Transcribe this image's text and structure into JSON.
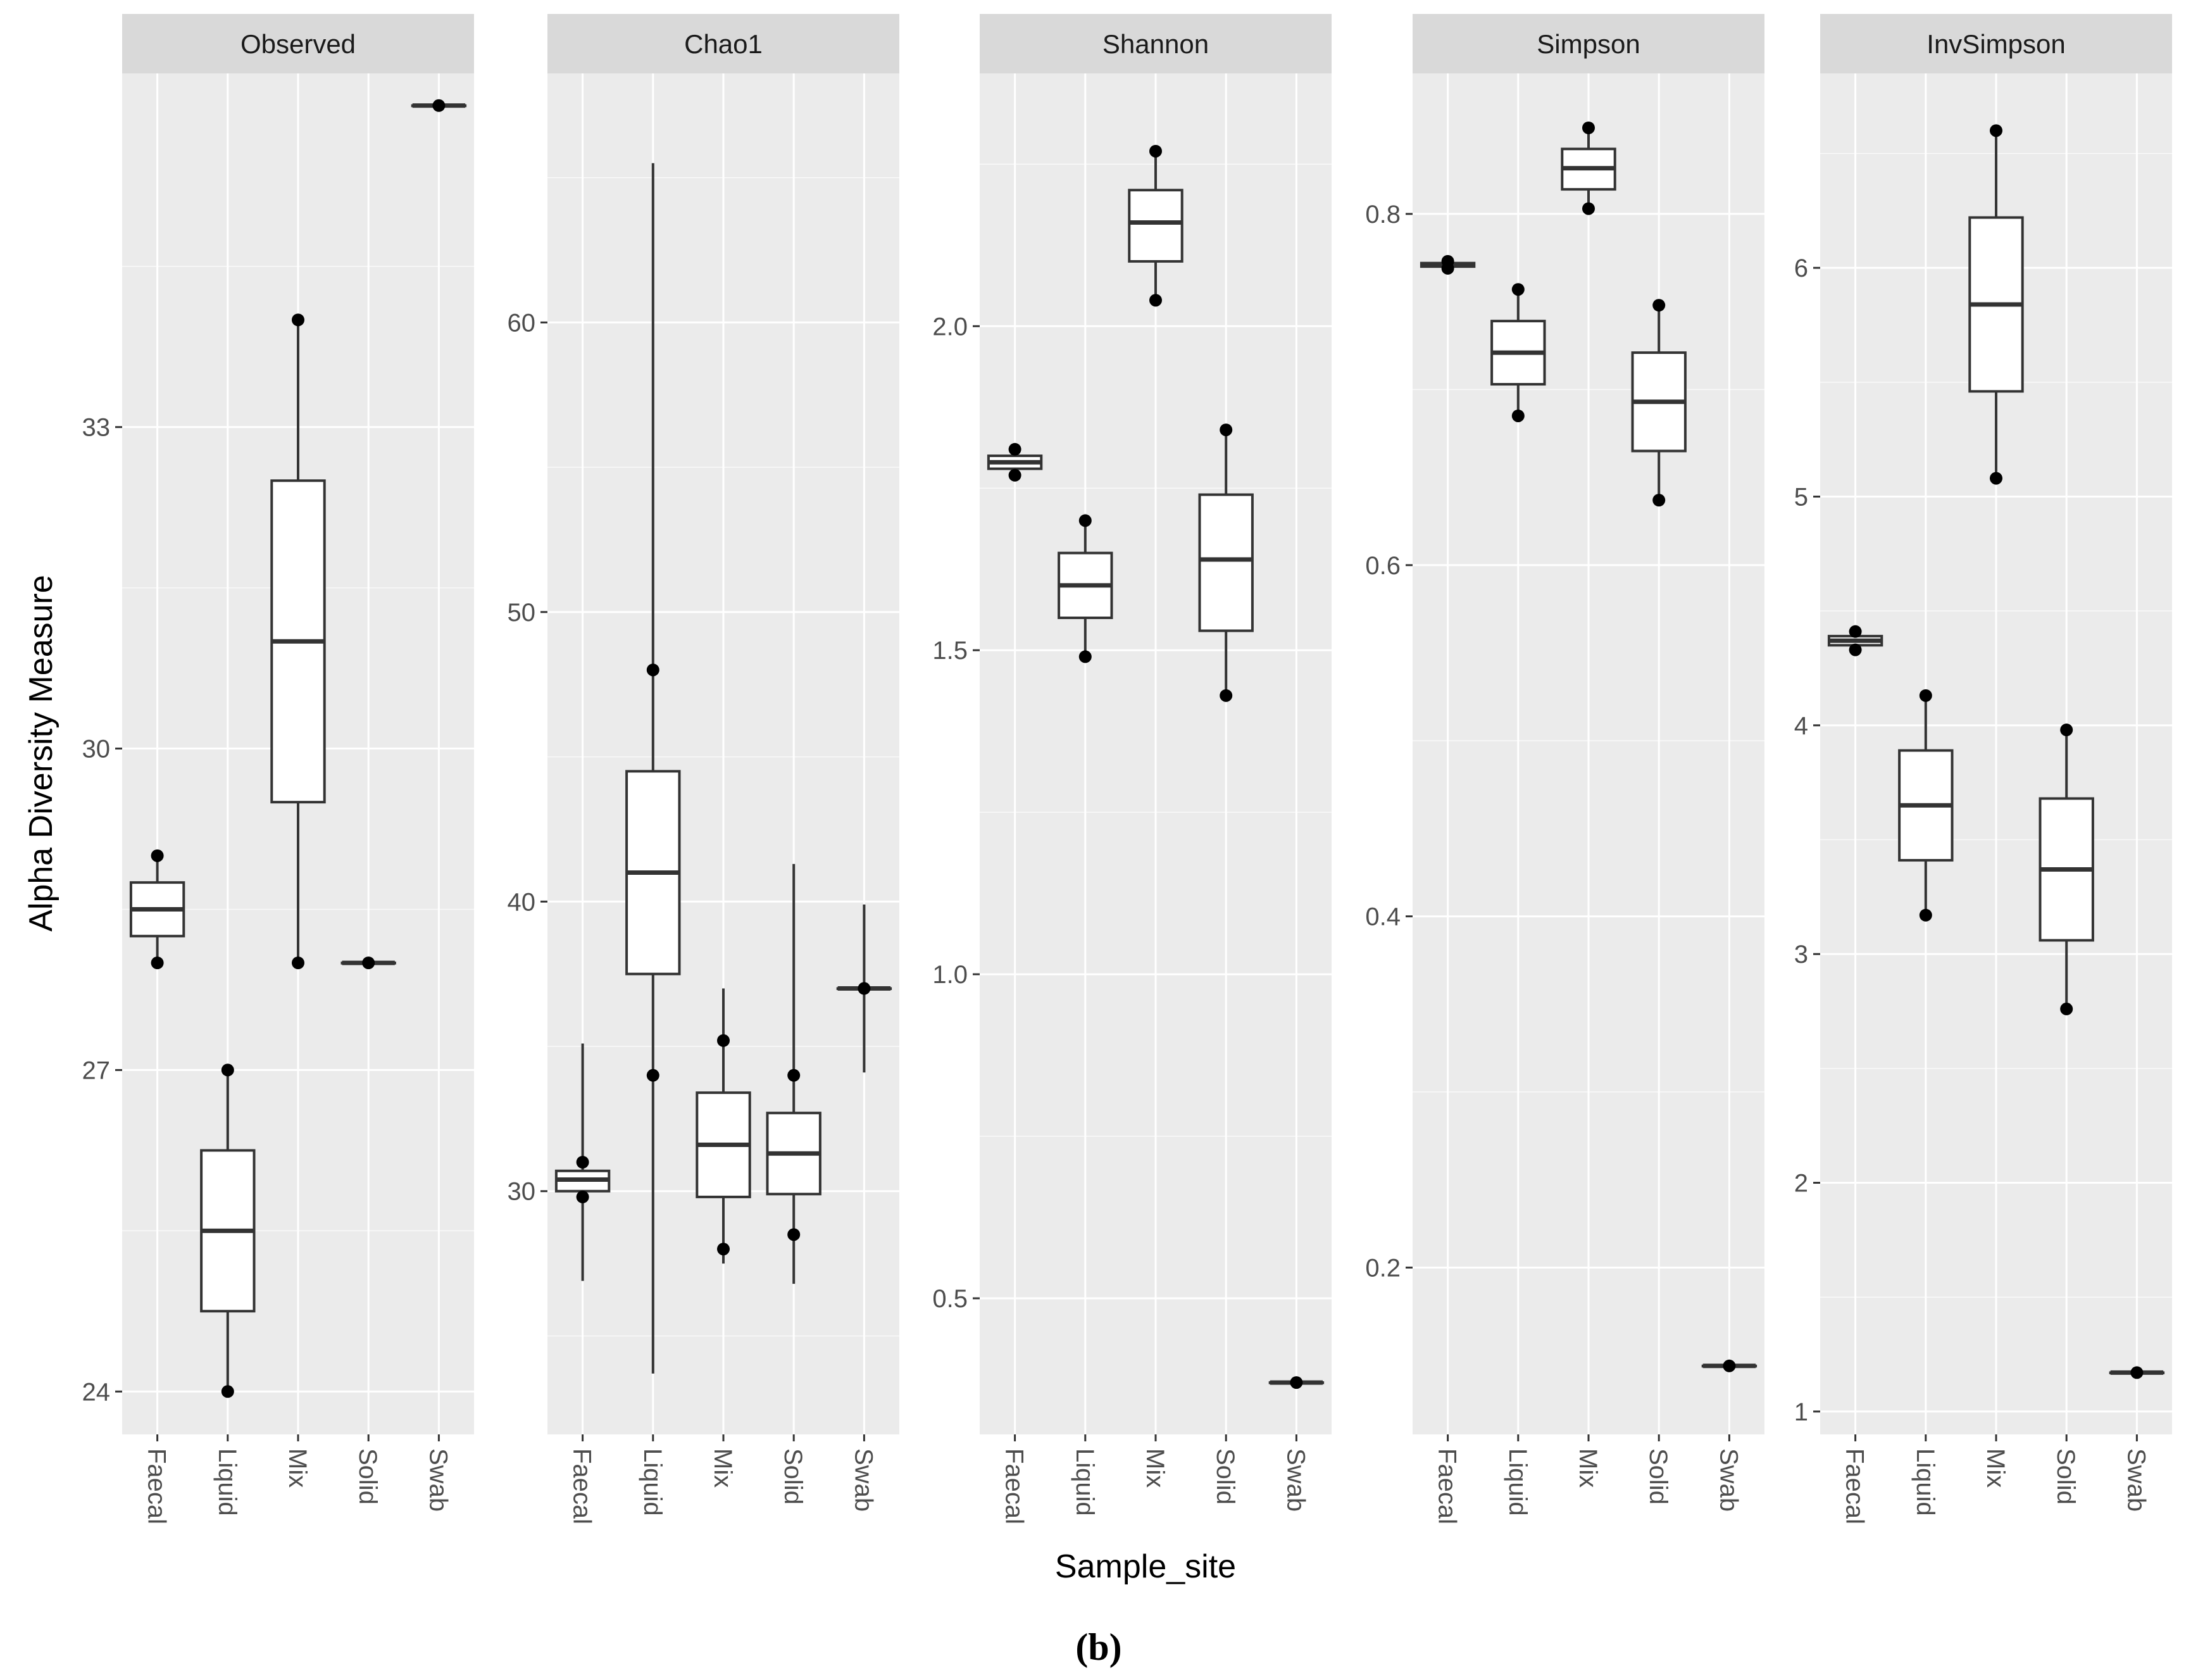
{
  "caption": "(b)",
  "chart_data": {
    "type": "boxplot",
    "xlabel": "Sample_site",
    "ylabel": "Alpha Diversity Measure",
    "categories": [
      "Faecal",
      "Liquid",
      "Mix",
      "Solid",
      "Swab"
    ],
    "colors": {
      "panel_bg": "#EBEBEB",
      "grid_major": "#FFFFFF",
      "strip_bg": "#D9D9D9",
      "box_fill": "#FFFFFF",
      "box_line": "#333333",
      "point": "#000000"
    },
    "panels": [
      {
        "title": "Observed",
        "ylim": [
          23.6,
          36.3
        ],
        "yticks": [
          24,
          27,
          30,
          33
        ],
        "ytick_labels": [
          "24",
          "27",
          "30",
          "33"
        ],
        "boxes": [
          {
            "category": "Faecal",
            "min": 28,
            "q1": 28.25,
            "median": 28.5,
            "q3": 28.75,
            "max": 29,
            "points": [
              28,
              29
            ]
          },
          {
            "category": "Liquid",
            "min": 24,
            "q1": 24.75,
            "median": 25.5,
            "q3": 26.25,
            "max": 27,
            "points": [
              24,
              27
            ]
          },
          {
            "category": "Mix",
            "min": 28,
            "q1": 29.5,
            "median": 31,
            "q3": 32.5,
            "max": 34,
            "points": [
              28,
              34
            ]
          },
          {
            "category": "Solid",
            "min": 28,
            "q1": 28,
            "median": 28,
            "q3": 28,
            "max": 28,
            "points": [
              28
            ]
          },
          {
            "category": "Swab",
            "min": 36,
            "q1": 36,
            "median": 36,
            "q3": 36,
            "max": 36,
            "points": [
              36
            ]
          }
        ]
      },
      {
        "title": "Chao1",
        "ylim": [
          21.6,
          68.6
        ],
        "yticks": [
          30,
          40,
          50,
          60
        ],
        "ytick_labels": [
          "30",
          "40",
          "50",
          "60"
        ],
        "boxes": [
          {
            "category": "Faecal",
            "min": 26.9,
            "q1": 30,
            "median": 30.4,
            "q3": 30.7,
            "max": 35.1,
            "points": [
              29.8,
              31
            ]
          },
          {
            "category": "Liquid",
            "min": 23.7,
            "q1": 37.5,
            "median": 41,
            "q3": 44.5,
            "max": 65.5,
            "points": [
              34,
              48
            ]
          },
          {
            "category": "Mix",
            "min": 27.5,
            "q1": 29.8,
            "median": 31.6,
            "q3": 33.4,
            "max": 37,
            "points": [
              28,
              35.2
            ]
          },
          {
            "category": "Solid",
            "min": 26.8,
            "q1": 29.9,
            "median": 31.3,
            "q3": 32.7,
            "max": 41.3,
            "points": [
              28.5,
              34
            ]
          },
          {
            "category": "Swab",
            "min": 34.1,
            "q1": 37,
            "median": 37,
            "q3": 37,
            "max": 39.9,
            "points": [
              37
            ]
          }
        ]
      },
      {
        "title": "Shannon",
        "ylim": [
          0.29,
          2.39
        ],
        "yticks": [
          0.5,
          1.0,
          1.5,
          2.0
        ],
        "ytick_labels": [
          "0.5",
          "1.0",
          "1.5",
          "2.0"
        ],
        "boxes": [
          {
            "category": "Faecal",
            "min": 1.77,
            "q1": 1.78,
            "median": 1.79,
            "q3": 1.8,
            "max": 1.81,
            "points": [
              1.77,
              1.81
            ]
          },
          {
            "category": "Liquid",
            "min": 1.49,
            "q1": 1.55,
            "median": 1.6,
            "q3": 1.65,
            "max": 1.7,
            "points": [
              1.49,
              1.7
            ]
          },
          {
            "category": "Mix",
            "min": 2.04,
            "q1": 2.1,
            "median": 2.16,
            "q3": 2.21,
            "max": 2.27,
            "points": [
              2.04,
              2.27
            ]
          },
          {
            "category": "Solid",
            "min": 1.43,
            "q1": 1.53,
            "median": 1.64,
            "q3": 1.74,
            "max": 1.84,
            "points": [
              1.43,
              1.84
            ]
          },
          {
            "category": "Swab",
            "min": 0.37,
            "q1": 0.37,
            "median": 0.37,
            "q3": 0.37,
            "max": 0.37,
            "points": [
              0.37
            ]
          }
        ]
      },
      {
        "title": "Simpson",
        "ylim": [
          0.105,
          0.88
        ],
        "yticks": [
          0.2,
          0.4,
          0.6,
          0.8
        ],
        "ytick_labels": [
          "0.2",
          "0.4",
          "0.6",
          "0.8"
        ],
        "boxes": [
          {
            "category": "Faecal",
            "min": 0.769,
            "q1": 0.77,
            "median": 0.771,
            "q3": 0.772,
            "max": 0.773,
            "points": [
              0.769,
              0.773
            ]
          },
          {
            "category": "Liquid",
            "min": 0.685,
            "q1": 0.703,
            "median": 0.721,
            "q3": 0.739,
            "max": 0.757,
            "points": [
              0.685,
              0.757
            ]
          },
          {
            "category": "Mix",
            "min": 0.803,
            "q1": 0.814,
            "median": 0.826,
            "q3": 0.837,
            "max": 0.849,
            "points": [
              0.803,
              0.849
            ]
          },
          {
            "category": "Solid",
            "min": 0.637,
            "q1": 0.665,
            "median": 0.693,
            "q3": 0.721,
            "max": 0.748,
            "points": [
              0.637,
              0.748
            ]
          },
          {
            "category": "Swab",
            "min": 0.144,
            "q1": 0.144,
            "median": 0.144,
            "q3": 0.144,
            "max": 0.144,
            "points": [
              0.144
            ]
          }
        ]
      },
      {
        "title": "InvSimpson",
        "ylim": [
          0.9,
          6.85
        ],
        "yticks": [
          1,
          2,
          3,
          4,
          5,
          6
        ],
        "ytick_labels": [
          "1",
          "2",
          "3",
          "4",
          "5",
          "6"
        ],
        "boxes": [
          {
            "category": "Faecal",
            "min": 4.33,
            "q1": 4.35,
            "median": 4.37,
            "q3": 4.39,
            "max": 4.41,
            "points": [
              4.33,
              4.41
            ]
          },
          {
            "category": "Liquid",
            "min": 3.17,
            "q1": 3.41,
            "median": 3.65,
            "q3": 3.89,
            "max": 4.13,
            "points": [
              3.17,
              4.13
            ]
          },
          {
            "category": "Mix",
            "min": 5.08,
            "q1": 5.46,
            "median": 5.84,
            "q3": 6.22,
            "max": 6.6,
            "points": [
              5.08,
              6.6
            ]
          },
          {
            "category": "Solid",
            "min": 2.76,
            "q1": 3.06,
            "median": 3.37,
            "q3": 3.68,
            "max": 3.98,
            "points": [
              2.76,
              3.98
            ]
          },
          {
            "category": "Swab",
            "min": 1.17,
            "q1": 1.17,
            "median": 1.17,
            "q3": 1.17,
            "max": 1.17,
            "points": [
              1.17
            ]
          }
        ]
      }
    ]
  }
}
